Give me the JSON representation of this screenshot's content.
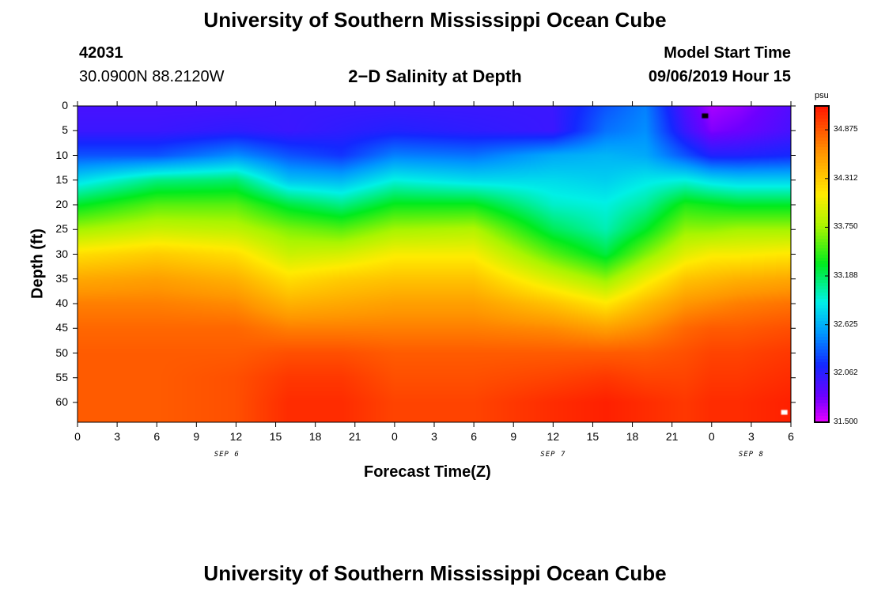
{
  "header": {
    "title_top": "University of Southern Mississippi Ocean Cube",
    "title_bottom": "University of Southern Mississippi Ocean Cube",
    "station_id": "42031",
    "station_coords": "30.0900N 88.2120W",
    "plot_title": "2−D Salinity at Depth",
    "model_label": "Model Start Time",
    "model_time": "09/06/2019 Hour 15"
  },
  "chart_data": {
    "type": "heatmap",
    "title": "2−D Salinity at Depth",
    "xlabel": "Forecast Time(Z)",
    "ylabel": "Depth (ft)",
    "x_ticks": [
      "0",
      "3",
      "6",
      "9",
      "12",
      "15",
      "18",
      "21",
      "0",
      "3",
      "6",
      "9",
      "12",
      "15",
      "18",
      "21",
      "0",
      "3",
      "6"
    ],
    "x_range_hours": [
      0,
      54
    ],
    "date_labels": [
      {
        "text": "SEP 6",
        "hour": 11.3
      },
      {
        "text": "SEP 7",
        "hour": 36
      },
      {
        "text": "SEP 8",
        "hour": 51
      }
    ],
    "y_ticks": [
      "0",
      "5",
      "10",
      "15",
      "20",
      "25",
      "30",
      "35",
      "40",
      "45",
      "50",
      "55",
      "60"
    ],
    "y_range": [
      0,
      64
    ],
    "colorbar": {
      "unit": "psu",
      "min": 31.5,
      "max": 35.15,
      "ticks": [
        "34.875",
        "34.312",
        "33.750",
        "33.188",
        "32.625",
        "32.062",
        "31.500"
      ]
    },
    "time_hours": [
      0,
      6,
      12,
      16,
      20,
      24,
      30,
      36,
      40,
      43,
      46,
      48,
      50,
      54
    ],
    "depth_ft": [
      0,
      5,
      10,
      15,
      20,
      25,
      30,
      35,
      40,
      45,
      50,
      55,
      60,
      64
    ],
    "salinity_psu": [
      [
        31.95,
        31.95,
        31.95,
        32.0,
        32.0,
        32.0,
        32.0,
        32.0,
        32.3,
        32.45,
        31.9,
        31.65,
        31.7,
        31.9
      ],
      [
        32.0,
        32.0,
        32.05,
        32.0,
        32.05,
        32.1,
        32.05,
        32.0,
        32.4,
        32.5,
        32.0,
        31.75,
        31.8,
        31.95
      ],
      [
        32.3,
        32.3,
        32.5,
        32.3,
        32.2,
        32.45,
        32.4,
        32.6,
        32.65,
        32.6,
        32.3,
        32.1,
        32.1,
        32.15
      ],
      [
        32.8,
        33.1,
        33.15,
        32.7,
        32.65,
        32.9,
        32.8,
        32.8,
        32.75,
        32.85,
        32.9,
        32.8,
        32.75,
        32.75
      ],
      [
        33.3,
        33.55,
        33.55,
        33.25,
        33.1,
        33.35,
        33.35,
        32.95,
        32.9,
        33.05,
        33.4,
        33.35,
        33.3,
        33.3
      ],
      [
        33.75,
        33.9,
        33.85,
        33.65,
        33.55,
        33.75,
        33.8,
        33.2,
        33.0,
        33.3,
        33.7,
        33.7,
        33.75,
        33.75
      ],
      [
        34.2,
        34.3,
        34.2,
        33.9,
        33.95,
        34.1,
        34.1,
        33.55,
        33.25,
        33.65,
        34.0,
        34.1,
        34.1,
        34.15
      ],
      [
        34.5,
        34.55,
        34.45,
        34.2,
        34.3,
        34.35,
        34.35,
        33.95,
        33.7,
        34.05,
        34.35,
        34.4,
        34.45,
        34.5
      ],
      [
        34.7,
        34.7,
        34.65,
        34.45,
        34.5,
        34.55,
        34.55,
        34.35,
        34.15,
        34.4,
        34.6,
        34.65,
        34.7,
        34.75
      ],
      [
        34.8,
        34.8,
        34.8,
        34.7,
        34.7,
        34.7,
        34.7,
        34.65,
        34.55,
        34.65,
        34.8,
        34.85,
        34.85,
        34.9
      ],
      [
        34.85,
        34.85,
        34.85,
        34.9,
        34.9,
        34.85,
        34.85,
        34.85,
        34.85,
        34.85,
        34.9,
        34.95,
        34.95,
        35.0
      ],
      [
        34.85,
        34.85,
        34.9,
        35.0,
        35.0,
        34.9,
        34.9,
        34.95,
        35.0,
        34.95,
        34.95,
        35.0,
        35.0,
        35.05
      ],
      [
        34.85,
        34.85,
        34.9,
        35.05,
        35.05,
        34.95,
        34.95,
        35.05,
        35.1,
        35.05,
        35.0,
        35.05,
        35.05,
        35.1
      ],
      [
        34.85,
        34.85,
        34.9,
        35.05,
        35.05,
        34.95,
        34.95,
        35.05,
        35.1,
        35.05,
        35.0,
        35.05,
        35.05,
        35.1
      ]
    ],
    "markers": [
      {
        "name": "black-marker",
        "hour": 47.5,
        "depth": 2,
        "color": "#000000"
      },
      {
        "name": "white-marker",
        "hour": 53.5,
        "depth": 62,
        "color": "#ffffff"
      }
    ]
  }
}
